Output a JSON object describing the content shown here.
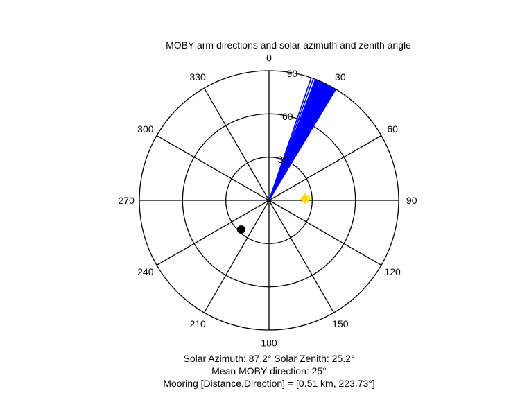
{
  "chart_data": {
    "type": "scatter",
    "projection": "polar",
    "title": "MOBY arm directions and solar azimuth and zenith angle",
    "angular_axis": {
      "direction": "clockwise",
      "zero_location": "top",
      "tick_values": [
        0,
        30,
        60,
        90,
        120,
        150,
        180,
        210,
        240,
        270,
        300,
        330
      ],
      "tick_labels": [
        "0",
        "30",
        "60",
        "90",
        "120",
        "150",
        "180",
        "210",
        "240",
        "270",
        "300",
        "330"
      ]
    },
    "radial_axis": {
      "range": [
        0,
        90
      ],
      "tick_values": [
        30,
        60,
        90
      ],
      "tick_labels": [
        "30",
        "60",
        "90"
      ]
    },
    "grid": true,
    "series": [
      {
        "kind": "rays",
        "color": "#0000ff",
        "angles_deg": [
          19,
          20,
          21,
          22,
          23,
          24,
          25,
          26,
          27,
          28,
          29,
          30,
          31
        ],
        "radius": 90
      },
      {
        "kind": "marker",
        "marker": "asterisk",
        "color": "#ffd700",
        "points": [
          {
            "angle_deg": 87.2,
            "r": 25.2
          }
        ]
      },
      {
        "kind": "marker",
        "marker": "dot",
        "color": "#000000",
        "points": [
          {
            "angle_deg": 223.73,
            "r": 28
          }
        ]
      }
    ],
    "caption_lines": [
      "Solar Azimuth: 87.2°    Solar Zenith: 25.2°",
      "Mean MOBY direction: 25°",
      "Mooring [Distance,Direction] = [0.51 km, 223.73°]"
    ]
  }
}
